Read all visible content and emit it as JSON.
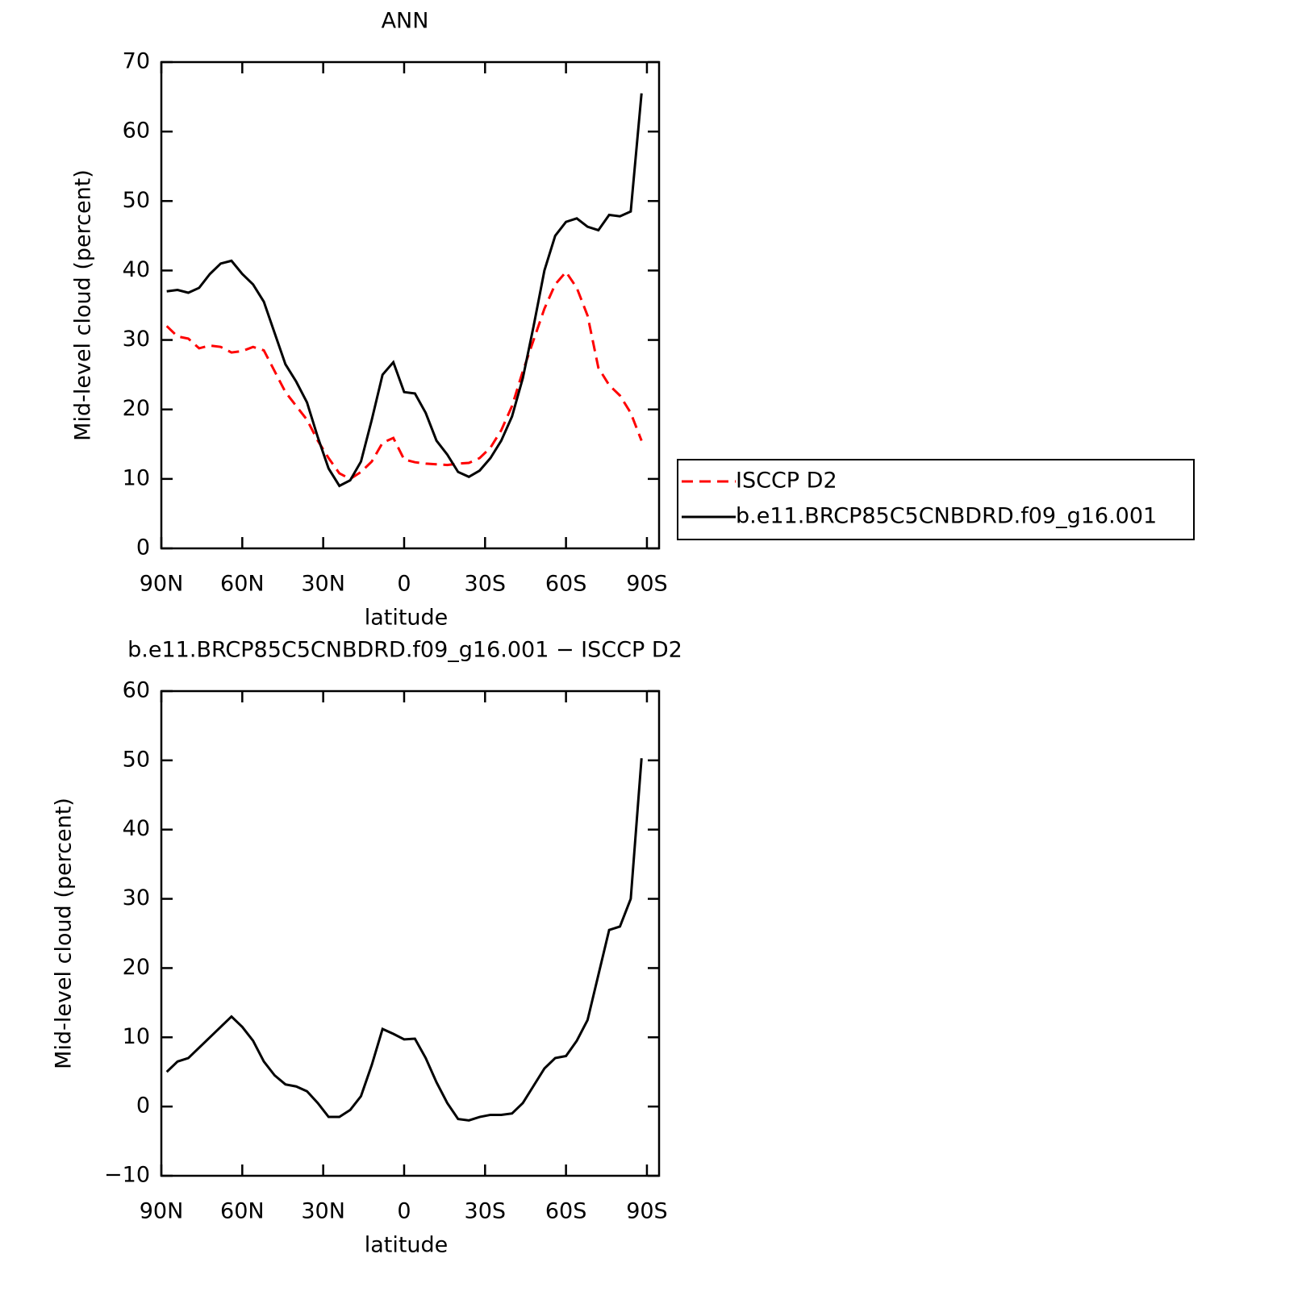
{
  "chart_data": [
    {
      "type": "line",
      "title": "ANN",
      "xlabel": "latitude",
      "ylabel": "Mid-level cloud (percent)",
      "x": [
        88,
        84,
        80,
        76,
        72,
        68,
        64,
        60,
        56,
        52,
        48,
        44,
        40,
        36,
        32,
        28,
        24,
        20,
        16,
        12,
        8,
        4,
        0,
        -4,
        -8,
        -12,
        -16,
        -20,
        -24,
        -28,
        -32,
        -36,
        -40,
        -44,
        -48,
        -52,
        -56,
        -60,
        -64,
        -68,
        -72,
        -76,
        -80,
        -84,
        -88
      ],
      "xlim": [
        90,
        -94.5
      ],
      "xticks": [
        {
          "value": 90,
          "label": "90N"
        },
        {
          "value": 60,
          "label": "60N"
        },
        {
          "value": 30,
          "label": "30N"
        },
        0,
        {
          "value": -30,
          "label": "30S"
        },
        {
          "value": -60,
          "label": "60S"
        },
        {
          "value": -90,
          "label": "90S"
        }
      ],
      "ylim": [
        0,
        70
      ],
      "yticks": [
        0,
        10,
        20,
        30,
        40,
        50,
        60,
        70
      ],
      "series": [
        {
          "name": "ISCCP D2",
          "color": "#ff0000",
          "dash": true,
          "values": [
            32,
            30.5,
            30.2,
            28.8,
            29.2,
            29,
            28.2,
            28.4,
            29,
            28.5,
            25.5,
            22.5,
            20.5,
            18.5,
            15.5,
            13,
            10.8,
            10,
            11,
            12.5,
            15.2,
            15.9,
            12.8,
            12.4,
            12.2,
            12.1,
            12,
            12.2,
            12.3,
            13,
            14.5,
            17,
            20.5,
            25.5,
            30,
            34.5,
            38,
            39.8,
            37.5,
            33.5,
            26,
            23.5,
            22,
            19.5,
            15.5
          ]
        },
        {
          "name": "b.e11.BRCP85C5CNBDRD.f09_g16.001",
          "color": "#000000",
          "dash": false,
          "values": [
            37,
            37.2,
            36.8,
            37.5,
            39.5,
            41,
            41.4,
            39.5,
            38,
            35.5,
            31,
            26.5,
            24,
            21,
            16,
            11.5,
            9,
            9.8,
            12.5,
            18.5,
            25,
            26.8,
            22.5,
            22.3,
            19.5,
            15.5,
            13.5,
            11,
            10.3,
            11.2,
            13,
            15.5,
            19,
            24.5,
            32,
            40,
            45,
            47,
            47.5,
            46.3,
            45.8,
            48,
            47.8,
            48.5,
            65.5
          ]
        }
      ]
    },
    {
      "type": "line",
      "title": "b.e11.BRCP85C5CNBDRD.f09_g16.001 − ISCCP D2",
      "xlabel": "latitude",
      "ylabel": "Mid-level cloud (percent)",
      "x": [
        88,
        84,
        80,
        76,
        72,
        68,
        64,
        60,
        56,
        52,
        48,
        44,
        40,
        36,
        32,
        28,
        24,
        20,
        16,
        12,
        8,
        4,
        0,
        -4,
        -8,
        -12,
        -16,
        -20,
        -24,
        -28,
        -32,
        -36,
        -40,
        -44,
        -48,
        -52,
        -56,
        -60,
        -64,
        -68,
        -72,
        -76,
        -80,
        -84,
        -88
      ],
      "xlim": [
        90,
        -94.5
      ],
      "xticks": [
        {
          "value": 90,
          "label": "90N"
        },
        {
          "value": 60,
          "label": "60N"
        },
        {
          "value": 30,
          "label": "30N"
        },
        0,
        {
          "value": -30,
          "label": "30S"
        },
        {
          "value": -60,
          "label": "60S"
        },
        {
          "value": -90,
          "label": "90S"
        }
      ],
      "ylim": [
        -10,
        60
      ],
      "yticks": [
        {
          "value": -10,
          "label": "−10"
        },
        0,
        10,
        20,
        30,
        40,
        50,
        60
      ],
      "series": [
        {
          "color": "#000000",
          "dash": false,
          "values": [
            5,
            6.5,
            7,
            8.5,
            10,
            11.5,
            13,
            11.5,
            9.5,
            6.5,
            4.5,
            3.2,
            2.9,
            2.2,
            0.5,
            -1.5,
            -1.5,
            -0.5,
            1.5,
            6,
            11.2,
            10.5,
            9.7,
            9.8,
            7,
            3.5,
            0.5,
            -1.8,
            -2,
            -1.5,
            -1.2,
            -1.2,
            -1,
            0.5,
            3,
            5.5,
            7,
            7.3,
            9.5,
            12.5,
            19,
            25.5,
            26,
            30,
            50.3
          ]
        }
      ]
    }
  ]
}
